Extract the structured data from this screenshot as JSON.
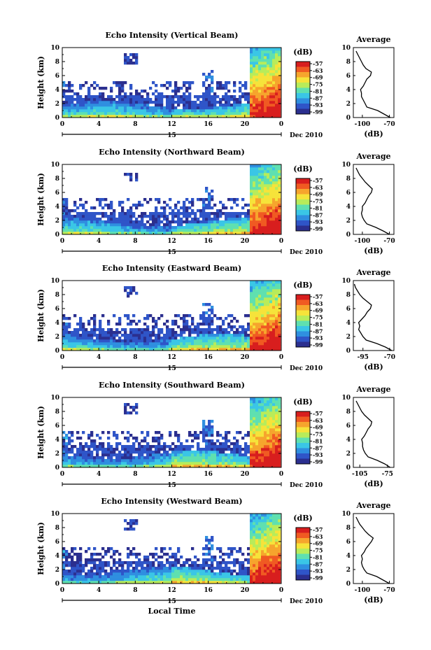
{
  "chart_data": [
    {
      "type": "heatmap",
      "title": "Echo Intensity (Vertical Beam)",
      "ylabel": "Height (km)",
      "xticks": [
        "0",
        "4",
        "8",
        "12",
        "16",
        "20",
        "0"
      ],
      "date_label": "15",
      "month_label": "Dec 2010",
      "xlim": [
        0,
        24
      ],
      "ylim": [
        0,
        10
      ],
      "yticks": [
        "0",
        "2",
        "4",
        "6",
        "8",
        "10"
      ],
      "colorbar": {
        "unit": "(dB)",
        "ticks": [
          "-57",
          "-63",
          "-69",
          "-75",
          "-81",
          "-87",
          "-93",
          "-99"
        ]
      },
      "profile": {
        "title": "Average",
        "xlabel": "(dB)",
        "xticks": [
          "-100",
          "-70"
        ],
        "xlim": [
          -110,
          -65
        ],
        "heights": [
          0,
          0.5,
          1,
          1.5,
          2,
          2.5,
          3,
          3.5,
          4,
          4.5,
          5,
          5.5,
          6,
          6.5,
          7,
          7.5,
          8,
          8.5,
          9,
          9.5
        ],
        "values": [
          -69,
          -76,
          -83,
          -95,
          -97,
          -99,
          -101,
          -101,
          -102,
          -99,
          -97,
          -95,
          -91,
          -90,
          -96,
          -99,
          -101,
          -103,
          -105,
          -107
        ]
      }
    },
    {
      "type": "heatmap",
      "title": "Echo Intensity (Northward Beam)",
      "ylabel": "Height (km)",
      "xticks": [
        "0",
        "4",
        "8",
        "12",
        "16",
        "20",
        "0"
      ],
      "date_label": "15",
      "month_label": "Dec 2010",
      "xlim": [
        0,
        24
      ],
      "ylim": [
        0,
        10
      ],
      "yticks": [
        "0",
        "2",
        "4",
        "6",
        "8",
        "10"
      ],
      "colorbar": {
        "unit": "(dB)",
        "ticks": [
          "-57",
          "-63",
          "-69",
          "-75",
          "-81",
          "-87",
          "-93",
          "-99"
        ]
      },
      "profile": {
        "title": "Average",
        "xlabel": "(dB)",
        "xticks": [
          "-100",
          "-70"
        ],
        "xlim": [
          -110,
          -65
        ],
        "heights": [
          0,
          0.5,
          1,
          1.5,
          2,
          2.5,
          3,
          3.5,
          4,
          4.5,
          5,
          5.5,
          6,
          6.5,
          7,
          7.5,
          8,
          8.5,
          9,
          9.5
        ],
        "values": [
          -70,
          -77,
          -85,
          -95,
          -98,
          -100,
          -101,
          -100,
          -100,
          -97,
          -95,
          -93,
          -90,
          -89,
          -93,
          -97,
          -100,
          -103,
          -105,
          -107
        ]
      }
    },
    {
      "type": "heatmap",
      "title": "Echo Intensity (Eastward Beam)",
      "ylabel": "Height (km)",
      "xticks": [
        "0",
        "4",
        "8",
        "12",
        "16",
        "20",
        "0"
      ],
      "date_label": "15",
      "month_label": "Dec 2010",
      "xlim": [
        0,
        24
      ],
      "ylim": [
        0,
        10
      ],
      "yticks": [
        "0",
        "2",
        "4",
        "6",
        "8",
        "10"
      ],
      "colorbar": {
        "unit": "(dB)",
        "ticks": [
          "-57",
          "-63",
          "-69",
          "-75",
          "-81",
          "-87",
          "-93",
          "-99"
        ]
      },
      "profile": {
        "title": "Average",
        "xlabel": "(dB)",
        "xticks": [
          "-95",
          "-70"
        ],
        "xlim": [
          -104,
          -66
        ],
        "heights": [
          0,
          0.5,
          1,
          1.5,
          2,
          2.5,
          3,
          3.5,
          4,
          4.5,
          5,
          5.5,
          6,
          6.5,
          7,
          7.5,
          8,
          8.5,
          9,
          9.5
        ],
        "values": [
          -68,
          -74,
          -82,
          -92,
          -95,
          -97,
          -99,
          -98,
          -99,
          -96,
          -93,
          -91,
          -88,
          -87,
          -91,
          -95,
          -98,
          -100,
          -102,
          -103
        ]
      }
    },
    {
      "type": "heatmap",
      "title": "Echo Intensity (Southward Beam)",
      "ylabel": "Height (km)",
      "xticks": [
        "0",
        "4",
        "8",
        "12",
        "16",
        "20",
        "0"
      ],
      "date_label": "15",
      "month_label": "Dec 2010",
      "xlim": [
        0,
        24
      ],
      "ylim": [
        0,
        10
      ],
      "yticks": [
        "0",
        "2",
        "4",
        "6",
        "8",
        "10"
      ],
      "colorbar": {
        "unit": "(dB)",
        "ticks": [
          "-57",
          "-63",
          "-69",
          "-75",
          "-81",
          "-87",
          "-93",
          "-99"
        ]
      },
      "profile": {
        "title": "Average",
        "xlabel": "(dB)",
        "xticks": [
          "-105",
          "-75"
        ],
        "xlim": [
          -112,
          -68
        ],
        "heights": [
          0,
          0.5,
          1,
          1.5,
          2,
          2.5,
          3,
          3.5,
          4,
          4.5,
          5,
          5.5,
          6,
          6.5,
          7,
          7.5,
          8,
          8.5,
          9,
          9.5
        ],
        "values": [
          -72,
          -78,
          -86,
          -96,
          -99,
          -101,
          -102,
          -102,
          -103,
          -100,
          -98,
          -96,
          -93,
          -92,
          -96,
          -100,
          -103,
          -105,
          -107,
          -109
        ]
      }
    },
    {
      "type": "heatmap",
      "title": "Echo Intensity (Westward Beam)",
      "ylabel": "Height (km)",
      "xlabel": "Local Time",
      "xticks": [
        "0",
        "4",
        "8",
        "12",
        "16",
        "20",
        "0"
      ],
      "date_label": "15",
      "month_label": "Dec 2010",
      "xlim": [
        0,
        24
      ],
      "ylim": [
        0,
        10
      ],
      "yticks": [
        "0",
        "2",
        "4",
        "6",
        "8",
        "10"
      ],
      "colorbar": {
        "unit": "(dB)",
        "ticks": [
          "-57",
          "-63",
          "-69",
          "-75",
          "-81",
          "-87",
          "-93",
          "-99"
        ]
      },
      "profile": {
        "title": "Average",
        "xlabel": "(dB)",
        "xticks": [
          "-100",
          "-70"
        ],
        "xlim": [
          -110,
          -65
        ],
        "heights": [
          0,
          0.5,
          1,
          1.5,
          2,
          2.5,
          3,
          3.5,
          4,
          4.5,
          5,
          5.5,
          6,
          6.5,
          7,
          7.5,
          8,
          8.5,
          9,
          9.5
        ],
        "values": [
          -70,
          -77,
          -84,
          -95,
          -98,
          -100,
          -101,
          -100,
          -101,
          -98,
          -96,
          -93,
          -90,
          -88,
          -93,
          -97,
          -100,
          -103,
          -105,
          -107
        ]
      }
    }
  ],
  "colors": {
    "colormap": [
      "#2b2f8f",
      "#2f55c8",
      "#2f8fe0",
      "#3ac6e6",
      "#5fe0b0",
      "#b8ec5a",
      "#f6e33a",
      "#f6a52d",
      "#f05a22",
      "#d81e1e"
    ],
    "line": "#000000",
    "background": "#ffffff"
  }
}
